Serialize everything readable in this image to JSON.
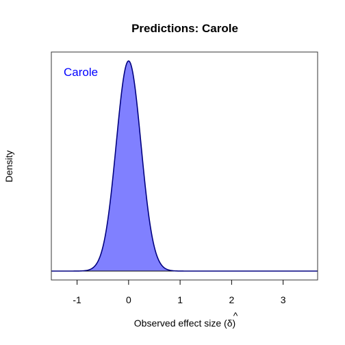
{
  "chart_data": {
    "type": "area",
    "title": "Predictions: Carole",
    "xlabel": "Observed effect size (δ̂)",
    "xlabel_text": "Observed effect size (",
    "xlabel_symbol": "δ",
    "xlabel_close": ")",
    "ylabel": "Density",
    "xlim": [
      -1.5,
      3.67
    ],
    "x_ticks": [
      -1,
      0,
      1,
      2,
      3
    ],
    "x_tick_labels": [
      "-1",
      "0",
      "1",
      "2",
      "3"
    ],
    "y_axis_ticks_shown": false,
    "series": [
      {
        "name": "Carole",
        "distribution": "normal",
        "mean": 0.0,
        "sd": 0.24,
        "fill_color": "#8080ff",
        "line_color": "#000080"
      }
    ],
    "legend_placement": "top-left",
    "grid": false,
    "colors": {
      "fill": "#8080ff",
      "line": "#000080",
      "label": "#0000ff",
      "baseline": "#000000"
    }
  }
}
